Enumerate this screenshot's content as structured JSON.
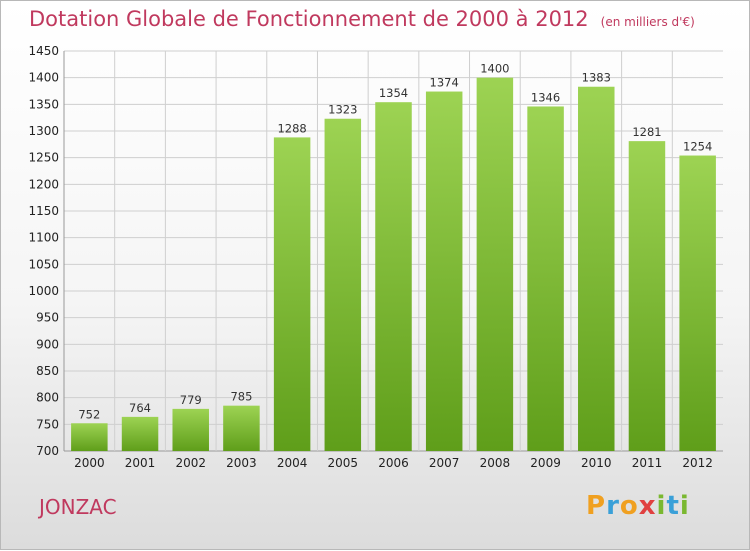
{
  "header": {
    "title": "Dotation Globale de Fonctionnement de 2000 à 2012",
    "unit": "(en milliers d'€)"
  },
  "footer": {
    "commune": "JONZAC",
    "brand": "Proxiti"
  },
  "colors": {
    "accent": "#c0395e",
    "bar_top": "#9dd353",
    "bar_bottom": "#5f9e1a",
    "grid": "#cfcfcf"
  },
  "chart_data": {
    "type": "bar",
    "title": "Dotation Globale de Fonctionnement de 2000 à 2012",
    "subtitle": "(en milliers d'€)",
    "xlabel": "",
    "ylabel": "",
    "categories": [
      "2000",
      "2001",
      "2002",
      "2003",
      "2004",
      "2005",
      "2006",
      "2007",
      "2008",
      "2009",
      "2010",
      "2011",
      "2012"
    ],
    "values": [
      752,
      764,
      779,
      785,
      1288,
      1323,
      1354,
      1374,
      1400,
      1346,
      1383,
      1281,
      1254
    ],
    "ylim": [
      700,
      1450
    ],
    "yticks": [
      700,
      750,
      800,
      850,
      900,
      950,
      1000,
      1050,
      1100,
      1150,
      1200,
      1250,
      1300,
      1350,
      1400,
      1450
    ],
    "grid": true,
    "legend": "none"
  }
}
